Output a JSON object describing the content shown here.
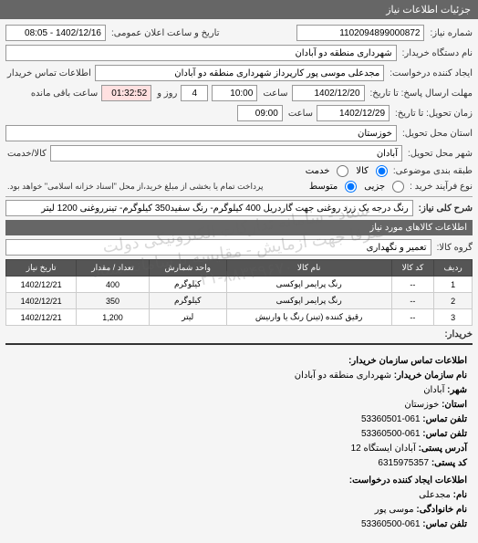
{
  "header": {
    "title": "جزئیات اطلاعات نیاز"
  },
  "form": {
    "request_number_label": "شماره نیاز:",
    "request_number": "1102094899000872",
    "public_datetime_label": "تاریخ و ساعت اعلان عمومی:",
    "public_datetime": "1402/12/16 - 08:05",
    "buyer_org_label": "نام دستگاه خریدار:",
    "buyer_org": "شهرداری منطقه دو آبادان",
    "requester_label": "ایجاد کننده درخواست:",
    "requester": "مجدعلی موسی پور کارپرداز شهرداری منطقه دو آبادان",
    "contact_info_label": "اطلاعات تماس خریدار",
    "deadline_to_label": "مهلت ارسال پاسخ: تا تاریخ:",
    "deadline_to_date": "1402/12/20",
    "deadline_to_time_label": "ساعت",
    "deadline_to_time": "10:00",
    "days_remain": "4",
    "days_remain_label": "روز و",
    "remain_time": "01:32:52",
    "remain_suffix": "ساعت باقی مانده",
    "delivery_to_label": "زمان تحویل: تا تاریخ:",
    "delivery_to_date": "1402/12/29",
    "delivery_to_time_label": "ساعت",
    "delivery_to_time": "09:00",
    "province_label": "استان محل تحویل:",
    "province": "خوزستان",
    "city_label": "شهر محل تحویل:",
    "city": "آبادان",
    "unit_label": "کالا/خدمت",
    "pkg_label": "طبقه بندی موضوعی:",
    "pkg_options": {
      "goods": "کالا",
      "service": "خدمت"
    },
    "type_label": "نوع فرآیند خرید :",
    "type_options": {
      "partial": "جزیی",
      "medium": "متوسط"
    },
    "note": "پرداخت تمام یا بخشی از مبلغ خرید،از محل \"اسناد خزانه اسلامی\" خواهد بود.",
    "desc_label": "شرح کلی نیاز:",
    "desc": "رنگ درجه یک زرد روغنی جهت گاردریل 400 کیلوگرم- رنگ سفید350 کیلوگرم- تینرروغنی 1200 لیتر",
    "goods_header": "اطلاعات کالاهای مورد نیاز",
    "group_label": "گروه کالا:",
    "group": "تعمیر و نگهداری"
  },
  "table": {
    "headers": {
      "row": "ردیف",
      "code": "کد کالا",
      "name": "نام کالا",
      "unit": "واحد شمارش",
      "qty": "تعداد / مقدار",
      "date": "تاریخ نیاز"
    },
    "rows": [
      {
        "row": "1",
        "code": "--",
        "name": "رنگ پرایمر اپوکسی",
        "unit": "کیلوگرم",
        "qty": "400",
        "date": "1402/12/21"
      },
      {
        "row": "2",
        "code": "--",
        "name": "رنگ پرایمر اپوکسی",
        "unit": "کیلوگرم",
        "qty": "350",
        "date": "1402/12/21"
      },
      {
        "row": "3",
        "code": "--",
        "name": "رقیق کننده (تینر) رنگ یا وارنیش",
        "unit": "لیتر",
        "qty": "1,200",
        "date": "1402/12/21"
      }
    ]
  },
  "contact": {
    "title": "اطلاعات تماس سازمان خریدار:",
    "org_label": "نام سازمان خریدار:",
    "org": "شهرداری منطقه دو آبادان",
    "city_label": "شهر:",
    "city": "آبادان",
    "province_label": "استان:",
    "province": "خوزستان",
    "phone_label": "تلفن تماس:",
    "phone": "061-53360501",
    "fax_label": "تلفن تماس:",
    "fax": "061-53360500",
    "address_label": "آدرس پستی:",
    "address": "آبادان ایستگاه 12",
    "postal_label": "کد پستی:",
    "postal": "6315975357",
    "requester_title": "اطلاعات ایجاد کننده درخواست:",
    "fname_label": "نام:",
    "fname": "مجدعلی",
    "lname_label": "نام خانوادگی:",
    "lname": "موسی پور",
    "rphone_label": "تلفن تماس:",
    "rphone": "061-53360500"
  },
  "watermark": {
    "line1": "ستاد - سامانه تدارکات الکترونیکی دولت",
    "line2": "صرفا جهت آزمایش - مقایسه با سامانه ستاد",
    "line3": "۰۲۱-۸۸۳۴۹۶۷۰"
  },
  "buyer_label": "خریدار:"
}
